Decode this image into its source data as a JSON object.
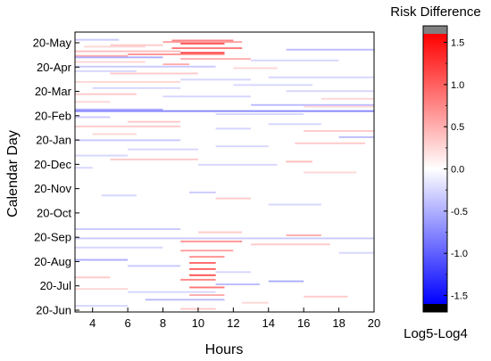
{
  "chart_data": {
    "type": "heatmap",
    "title": "",
    "xlabel": "Hours",
    "ylabel": "Calendar Day",
    "xlim": [
      3,
      20
    ],
    "x_ticks": [
      4,
      6,
      8,
      10,
      12,
      14,
      16,
      18,
      20
    ],
    "y_ticks": [
      "20-Jun",
      "20-Jul",
      "20-Aug",
      "20-Sep",
      "20-Oct",
      "20-Nov",
      "20-Dec",
      "20-Jan",
      "20-Feb",
      "20-Mar",
      "20-Apr",
      "20-May"
    ],
    "y_domain_days": [
      0,
      365
    ],
    "colorbar": {
      "title": "Risk Difference",
      "label": "Log5-Log4",
      "range": [
        -1.6,
        1.6
      ],
      "ticks": [
        "1.5",
        "1.0",
        "0.5",
        "0.0",
        "-0.5",
        "-1.0",
        "-1.5"
      ],
      "tick_values": [
        1.5,
        1.0,
        0.5,
        0.0,
        -0.5,
        -1.0,
        -1.5
      ],
      "colors": {
        "low": "#0000ff",
        "mid": "#ffffff",
        "high": "#ff0000",
        "over": "#808080",
        "under": "#000000"
      }
    },
    "cells": [
      {
        "day": 355,
        "x0": 3.0,
        "x1": 5.5,
        "v": -0.4
      },
      {
        "day": 354,
        "x0": 8.5,
        "x1": 12.0,
        "v": 0.9
      },
      {
        "day": 352,
        "x0": 8.0,
        "x1": 12.5,
        "v": 0.7
      },
      {
        "day": 350,
        "x0": 9.0,
        "x1": 11.5,
        "v": 1.2
      },
      {
        "day": 348,
        "x0": 5.0,
        "x1": 8.0,
        "v": 0.4
      },
      {
        "day": 346,
        "x0": 3.5,
        "x1": 7.0,
        "v": 0.3
      },
      {
        "day": 344,
        "x0": 8.5,
        "x1": 12.5,
        "v": 1.0
      },
      {
        "day": 342,
        "x0": 15.0,
        "x1": 20.0,
        "v": -0.5
      },
      {
        "day": 340,
        "x0": 3.0,
        "x1": 9.0,
        "v": 0.5
      },
      {
        "day": 338,
        "x0": 9.0,
        "x1": 11.5,
        "v": 1.4
      },
      {
        "day": 336,
        "x0": 6.0,
        "x1": 11.5,
        "v": 0.8
      },
      {
        "day": 334,
        "x0": 3.0,
        "x1": 6.0,
        "v": 0.6
      },
      {
        "day": 332,
        "x0": 3.0,
        "x1": 8.0,
        "v": -0.6
      },
      {
        "day": 330,
        "x0": 9.0,
        "x1": 13.0,
        "v": 0.6
      },
      {
        "day": 328,
        "x0": 13.0,
        "x1": 18.0,
        "v": -0.3
      },
      {
        "day": 326,
        "x0": 3.0,
        "x1": 7.0,
        "v": 0.3
      },
      {
        "day": 323,
        "x0": 8.0,
        "x1": 9.5,
        "v": 0.6
      },
      {
        "day": 320,
        "x0": 3.0,
        "x1": 11.0,
        "v": -0.4
      },
      {
        "day": 318,
        "x0": 12.0,
        "x1": 14.5,
        "v": 0.3
      },
      {
        "day": 314,
        "x0": 3.0,
        "x1": 6.5,
        "v": -0.3
      },
      {
        "day": 311,
        "x0": 5.0,
        "x1": 10.0,
        "v": 0.4
      },
      {
        "day": 306,
        "x0": 14.0,
        "x1": 20.0,
        "v": -0.3
      },
      {
        "day": 303,
        "x0": 9.0,
        "x1": 13.0,
        "v": -0.3
      },
      {
        "day": 300,
        "x0": 3.0,
        "x1": 9.0,
        "v": 0.3
      },
      {
        "day": 296,
        "x0": 12.0,
        "x1": 16.5,
        "v": -0.3
      },
      {
        "day": 292,
        "x0": 4.0,
        "x1": 9.0,
        "v": -0.3
      },
      {
        "day": 288,
        "x0": 15.0,
        "x1": 20.0,
        "v": -0.3
      },
      {
        "day": 284,
        "x0": 3.0,
        "x1": 6.5,
        "v": 0.4
      },
      {
        "day": 281,
        "x0": 8.0,
        "x1": 13.0,
        "v": -0.3
      },
      {
        "day": 278,
        "x0": 17.0,
        "x1": 20.0,
        "v": 0.3
      },
      {
        "day": 274,
        "x0": 3.0,
        "x1": 5.0,
        "v": 0.3
      },
      {
        "day": 270,
        "x0": 13.0,
        "x1": 20.0,
        "v": -0.5
      },
      {
        "day": 268,
        "x0": 16.0,
        "x1": 20.0,
        "v": 0.3
      },
      {
        "day": 264,
        "x0": 3.0,
        "x1": 8.0,
        "v": -0.6
      },
      {
        "day": 262,
        "x0": 3.0,
        "x1": 20.0,
        "v": -0.9
      },
      {
        "day": 258,
        "x0": 11.0,
        "x1": 16.0,
        "v": -0.3
      },
      {
        "day": 254,
        "x0": 3.0,
        "x1": 5.0,
        "v": -0.4
      },
      {
        "day": 248,
        "x0": 6.0,
        "x1": 9.0,
        "v": 0.4
      },
      {
        "day": 245,
        "x0": 14.0,
        "x1": 17.0,
        "v": -0.3
      },
      {
        "day": 242,
        "x0": 3.0,
        "x1": 9.0,
        "v": 0.4
      },
      {
        "day": 239,
        "x0": 11.0,
        "x1": 13.0,
        "v": -0.3
      },
      {
        "day": 236,
        "x0": 16.0,
        "x1": 20.0,
        "v": 0.4
      },
      {
        "day": 232,
        "x0": 4.0,
        "x1": 6.5,
        "v": 0.3
      },
      {
        "day": 228,
        "x0": 18.0,
        "x1": 20.0,
        "v": -0.5
      },
      {
        "day": 224,
        "x0": 3.0,
        "x1": 9.0,
        "v": -0.4
      },
      {
        "day": 220,
        "x0": 15.5,
        "x1": 19.5,
        "v": 0.4
      },
      {
        "day": 216,
        "x0": 11.0,
        "x1": 14.0,
        "v": -0.3
      },
      {
        "day": 212,
        "x0": 6.0,
        "x1": 10.0,
        "v": -0.3
      },
      {
        "day": 204,
        "x0": 3.0,
        "x1": 6.0,
        "v": -0.3
      },
      {
        "day": 199,
        "x0": 5.0,
        "x1": 10.0,
        "v": 0.4
      },
      {
        "day": 196,
        "x0": 15.0,
        "x1": 16.5,
        "v": 0.5
      },
      {
        "day": 192,
        "x0": 10.0,
        "x1": 14.5,
        "v": -0.3
      },
      {
        "day": 188,
        "x0": 3.0,
        "x1": 4.0,
        "v": -0.3
      },
      {
        "day": 182,
        "x0": 16.0,
        "x1": 19.0,
        "v": 0.3
      },
      {
        "day": 156,
        "x0": 9.5,
        "x1": 11.0,
        "v": -0.4
      },
      {
        "day": 152,
        "x0": 4.5,
        "x1": 6.5,
        "v": -0.3
      },
      {
        "day": 148,
        "x0": 11.0,
        "x1": 13.0,
        "v": 0.4
      },
      {
        "day": 140,
        "x0": 14.0,
        "x1": 17.0,
        "v": -0.3
      },
      {
        "day": 108,
        "x0": 3.0,
        "x1": 9.0,
        "v": -0.4
      },
      {
        "day": 104,
        "x0": 10.0,
        "x1": 12.5,
        "v": 0.4
      },
      {
        "day": 100,
        "x0": 15.0,
        "x1": 17.0,
        "v": 0.6
      },
      {
        "day": 96,
        "x0": 3.0,
        "x1": 20.0,
        "v": -0.4
      },
      {
        "day": 92,
        "x0": 9.0,
        "x1": 12.5,
        "v": 0.8
      },
      {
        "day": 88,
        "x0": 13.0,
        "x1": 17.5,
        "v": 0.4
      },
      {
        "day": 84,
        "x0": 3.0,
        "x1": 8.0,
        "v": -0.3
      },
      {
        "day": 80,
        "x0": 9.0,
        "x1": 12.0,
        "v": 0.7
      },
      {
        "day": 77,
        "x0": 18.0,
        "x1": 20.0,
        "v": -0.3
      },
      {
        "day": 72,
        "x0": 9.5,
        "x1": 11.5,
        "v": 0.8
      },
      {
        "day": 68,
        "x0": 3.0,
        "x1": 6.0,
        "v": -0.6
      },
      {
        "day": 64,
        "x0": 9.5,
        "x1": 11.0,
        "v": 1.1
      },
      {
        "day": 60,
        "x0": 6.0,
        "x1": 9.0,
        "v": -0.4
      },
      {
        "day": 56,
        "x0": 9.5,
        "x1": 11.0,
        "v": 1.2
      },
      {
        "day": 52,
        "x0": 11.0,
        "x1": 13.0,
        "v": -0.3
      },
      {
        "day": 48,
        "x0": 9.5,
        "x1": 11.0,
        "v": 1.3
      },
      {
        "day": 45,
        "x0": 3.0,
        "x1": 5.0,
        "v": 0.4
      },
      {
        "day": 42,
        "x0": 9.0,
        "x1": 11.0,
        "v": 0.9
      },
      {
        "day": 40,
        "x0": 14.0,
        "x1": 16.0,
        "v": -0.6
      },
      {
        "day": 36,
        "x0": 11.0,
        "x1": 13.5,
        "v": -0.5
      },
      {
        "day": 32,
        "x0": 9.5,
        "x1": 11.5,
        "v": 1.0
      },
      {
        "day": 30,
        "x0": 3.0,
        "x1": 6.0,
        "v": 0.3
      },
      {
        "day": 26,
        "x0": 6.0,
        "x1": 11.0,
        "v": -0.3
      },
      {
        "day": 22,
        "x0": 9.5,
        "x1": 11.5,
        "v": 0.6
      },
      {
        "day": 20,
        "x0": 16.0,
        "x1": 18.5,
        "v": 0.4
      },
      {
        "day": 16,
        "x0": 7.0,
        "x1": 11.5,
        "v": -0.5
      },
      {
        "day": 12,
        "x0": 12.5,
        "x1": 14.0,
        "v": 0.3
      },
      {
        "day": 8,
        "x0": 3.0,
        "x1": 6.0,
        "v": -0.3
      },
      {
        "day": 4,
        "x0": 9.0,
        "x1": 11.0,
        "v": 0.4
      }
    ]
  }
}
